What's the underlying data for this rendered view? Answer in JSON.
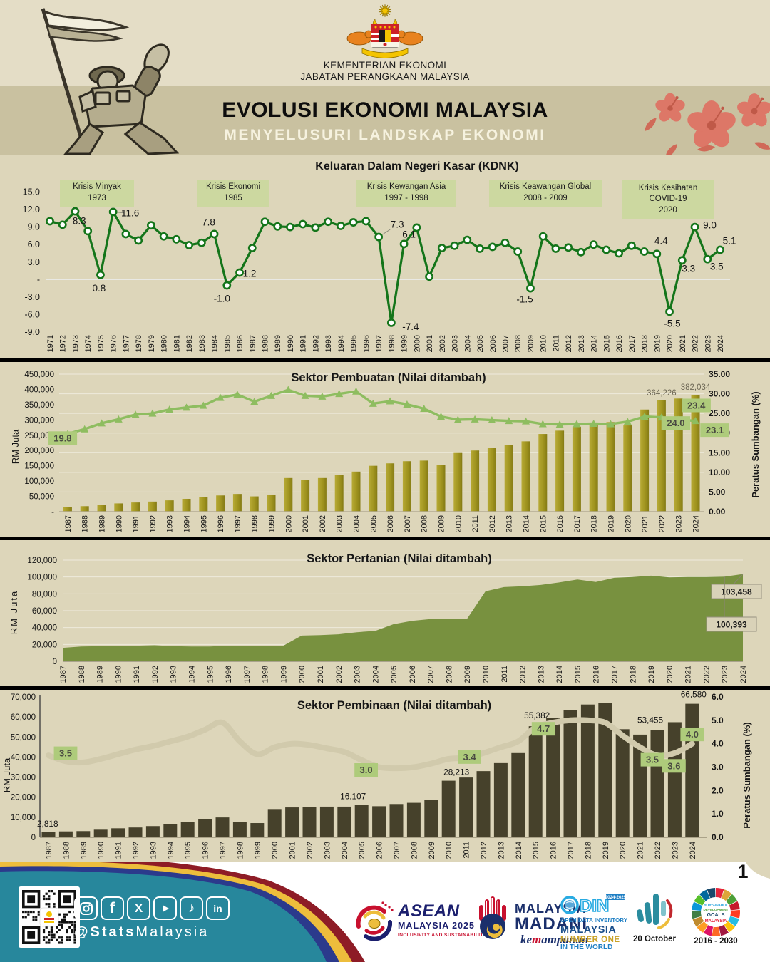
{
  "page": {
    "number": "1"
  },
  "header": {
    "ministry1": "KEMENTERIAN EKONOMI",
    "ministry2": "JABATAN PERANGKAAN MALAYSIA",
    "title": "EVOLUSI EKONOMI MALAYSIA",
    "subtitle": "MENYELUSURI  LANDSKAP  EKONOMI"
  },
  "colors": {
    "page_beige": "#ddd6ba",
    "band_beige": "#c9c1a0",
    "header_beige": "#e4ddc6",
    "kdnk_green": "#14751a",
    "crisis_box": "#ccd8a0",
    "manuf_bar": "#a79a22",
    "manuf_line": "#8ebd60",
    "value_box_green": "#aecb7b",
    "agri_area": "#78913f",
    "callout_beige": "#d9d2b8",
    "constr_bar": "#46412b",
    "constr_line": "#d1caac",
    "footer_teal": "#27879c",
    "stripe_maroon": "#8e1c26",
    "stripe_yellow": "#edbd3c",
    "stripe_blue": "#2b3a8c"
  },
  "chart_data": [
    {
      "type": "line",
      "title": "Keluaran Dalam Negeri Kasar (KDNK)",
      "x": [
        "1971",
        "1972",
        "1973",
        "1974",
        "1975",
        "1976",
        "1977",
        "1978",
        "1979",
        "1980",
        "1981",
        "1982",
        "1983",
        "1984",
        "1985",
        "1986",
        "1987",
        "1988",
        "1989",
        "1990",
        "1991",
        "1992",
        "1993",
        "1994",
        "1995",
        "1996",
        "1997",
        "1998",
        "1999",
        "2000",
        "2001",
        "2002",
        "2003",
        "2004",
        "2005",
        "2006",
        "2007",
        "2008",
        "2009",
        "2010",
        "2011",
        "2012",
        "2013",
        "2014",
        "2015",
        "2016",
        "2017",
        "2018",
        "2019",
        "2020",
        "2021",
        "2022",
        "2023",
        "2024"
      ],
      "values": [
        10.0,
        9.4,
        11.7,
        8.3,
        0.8,
        11.6,
        7.8,
        6.7,
        9.3,
        7.4,
        6.9,
        5.9,
        6.3,
        7.8,
        -1.0,
        1.2,
        5.4,
        9.9,
        9.1,
        9.0,
        9.5,
        8.9,
        9.9,
        9.2,
        9.8,
        10.0,
        7.3,
        -7.4,
        6.1,
        8.9,
        0.5,
        5.4,
        5.8,
        6.8,
        5.3,
        5.6,
        6.3,
        4.8,
        -1.5,
        7.4,
        5.3,
        5.5,
        4.7,
        6.0,
        5.1,
        4.5,
        5.8,
        4.8,
        4.4,
        -5.5,
        3.3,
        9.0,
        3.5,
        5.1
      ],
      "ylim": [
        -9,
        15
      ],
      "yticks": [
        {
          "v": 15,
          "label": "15.0"
        },
        {
          "v": 12,
          "label": "12.0"
        },
        {
          "v": 9,
          "label": "9.0"
        },
        {
          "v": 6,
          "label": "6.0"
        },
        {
          "v": 3,
          "label": "3.0"
        },
        {
          "v": 0,
          "label": "-"
        },
        {
          "v": -3,
          "label": "-3.0"
        },
        {
          "v": -6,
          "label": "-6.0"
        },
        {
          "v": -9,
          "label": "-9.0"
        }
      ],
      "point_labels": [
        {
          "x": "1974",
          "label": "8.3"
        },
        {
          "x": "1975",
          "label": "0.8"
        },
        {
          "x": "1976",
          "label": "11.6"
        },
        {
          "x": "1984",
          "label": "7.8"
        },
        {
          "x": "1985",
          "label": "-1.0"
        },
        {
          "x": "1986",
          "label": "1.2"
        },
        {
          "x": "1997",
          "label": "7.3"
        },
        {
          "x": "1998",
          "label": "-7.4"
        },
        {
          "x": "1999",
          "label": "6.1"
        },
        {
          "x": "2009",
          "label": "-1.5"
        },
        {
          "x": "2019",
          "label": "4.4"
        },
        {
          "x": "2020",
          "label": "-5.5"
        },
        {
          "x": "2021",
          "label": "3.3"
        },
        {
          "x": "2022",
          "label": "9.0"
        },
        {
          "x": "2023",
          "label": "3.5"
        },
        {
          "x": "2024",
          "label": "5.1"
        }
      ],
      "annotations": [
        {
          "lines": [
            "Krisis Minyak",
            "1973"
          ]
        },
        {
          "lines": [
            "Krisis Ekonomi",
            "1985"
          ]
        },
        {
          "lines": [
            "Krisis Kewangan Asia",
            "1997 - 1998"
          ]
        },
        {
          "lines": [
            "Krisis Keawangan Global",
            "2008 - 2009"
          ]
        },
        {
          "lines": [
            "Krisis Kesihatan",
            "COVID-19",
            "2020"
          ]
        }
      ]
    },
    {
      "type": "bar-line",
      "title": "Sektor Pembuatan (Nilai ditambah)",
      "ylabel_left": "RM Juta",
      "ylabel_right": "Peratus Sumbangan (%)",
      "x": [
        "1987",
        "1988",
        "1989",
        "1990",
        "1991",
        "1992",
        "1993",
        "1994",
        "1995",
        "1996",
        "1997",
        "1998",
        "1999",
        "2000",
        "2001",
        "2002",
        "2003",
        "2004",
        "2005",
        "2006",
        "2007",
        "2008",
        "2009",
        "2010",
        "2011",
        "2012",
        "2013",
        "2014",
        "2015",
        "2016",
        "2017",
        "2018",
        "2019",
        "2020",
        "2021",
        "2022",
        "2023",
        "2024"
      ],
      "bars": [
        15000,
        18000,
        22000,
        27000,
        30000,
        33000,
        37000,
        42000,
        47000,
        53000,
        58000,
        50000,
        56000,
        110000,
        104000,
        110000,
        119000,
        131000,
        150000,
        158000,
        165000,
        167000,
        152000,
        192000,
        200000,
        209000,
        217000,
        230000,
        254000,
        265000,
        278000,
        287000,
        293000,
        282000,
        334000,
        364226,
        370000,
        382034
      ],
      "line": [
        19.8,
        21.0,
        22.5,
        23.5,
        24.7,
        25.0,
        26.0,
        26.5,
        27.0,
        29.0,
        29.8,
        28.0,
        29.5,
        31.0,
        29.5,
        29.3,
        30.0,
        30.6,
        27.5,
        28.1,
        27.3,
        26.2,
        24.2,
        23.4,
        23.5,
        23.3,
        23.1,
        23.0,
        22.3,
        22.2,
        22.3,
        22.4,
        22.3,
        22.9,
        24.2,
        24.0,
        23.4,
        23.1
      ],
      "ylim_left": [
        0,
        450000
      ],
      "ylim_right": [
        0,
        35
      ],
      "yticks_left": [
        {
          "v": 450000,
          "label": "450,000"
        },
        {
          "v": 400000,
          "label": "400,000"
        },
        {
          "v": 350000,
          "label": "350,000"
        },
        {
          "v": 300000,
          "label": "300,000"
        },
        {
          "v": 250000,
          "label": "250,000"
        },
        {
          "v": 200000,
          "label": "200,000"
        },
        {
          "v": 150000,
          "label": "150,000"
        },
        {
          "v": 100000,
          "label": "100,000"
        },
        {
          "v": 50000,
          "label": "50,000"
        },
        {
          "v": 0,
          "label": "-"
        }
      ],
      "yticks_right": [
        {
          "v": 35,
          "label": "35.00"
        },
        {
          "v": 30,
          "label": "30.00"
        },
        {
          "v": 25,
          "label": "25.00"
        },
        {
          "v": 20,
          "label": "20.00"
        },
        {
          "v": 15,
          "label": "15.00"
        },
        {
          "v": 10,
          "label": "10.00"
        },
        {
          "v": 5,
          "label": "5.00"
        },
        {
          "v": 0,
          "label": "0.00"
        }
      ],
      "bar_labels": [
        {
          "x": "2022",
          "label": "364,226"
        },
        {
          "x": "2024",
          "label": "382,034"
        }
      ],
      "line_labels": [
        {
          "x": "1987",
          "label": "19.8"
        },
        {
          "x": "2022",
          "label": "24.0"
        },
        {
          "x": "2023",
          "label": "23.4"
        },
        {
          "x": "2024",
          "label": "23.1"
        }
      ]
    },
    {
      "type": "area",
      "title": "Sektor Pertanian (Nilai ditambah)",
      "ylabel": "RM Juta",
      "x": [
        "1987",
        "1988",
        "1989",
        "1990",
        "1991",
        "1992",
        "1993",
        "1994",
        "1995",
        "1996",
        "1997",
        "1998",
        "1999",
        "2000",
        "2001",
        "2002",
        "2003",
        "2004",
        "2005",
        "2006",
        "2007",
        "2008",
        "2009",
        "2010",
        "2011",
        "2012",
        "2013",
        "2014",
        "2015",
        "2016",
        "2017",
        "2018",
        "2019",
        "2020",
        "2021",
        "2022",
        "2023",
        "2024"
      ],
      "values": [
        16000,
        17500,
        18000,
        18000,
        18500,
        19000,
        18000,
        17500,
        17500,
        18500,
        18500,
        18500,
        18500,
        30500,
        31000,
        32000,
        34500,
        36000,
        44000,
        48000,
        50000,
        50500,
        50500,
        83000,
        88000,
        89000,
        90500,
        93500,
        97000,
        94000,
        99000,
        100000,
        101500,
        99500,
        100000,
        100000,
        100393,
        103458
      ],
      "ylim": [
        0,
        120000
      ],
      "yticks": [
        {
          "v": 120000,
          "label": "120,000"
        },
        {
          "v": 100000,
          "label": "100,000"
        },
        {
          "v": 80000,
          "label": "80,000"
        },
        {
          "v": 60000,
          "label": "60,000"
        },
        {
          "v": 40000,
          "label": "40,000"
        },
        {
          "v": 20000,
          "label": "20,000"
        },
        {
          "v": 0,
          "label": "0"
        }
      ],
      "callouts": [
        {
          "x": "2024",
          "label": "103,458"
        },
        {
          "x": "2023",
          "label": "100,393"
        }
      ]
    },
    {
      "type": "bar-line",
      "title": "Sektor Pembinaan (Nilai ditambah)",
      "ylabel_left": "RM Juta",
      "ylabel_right": "Peratus Sumbangan (%)",
      "x": [
        "1987",
        "1988",
        "1989",
        "1990",
        "1991",
        "1992",
        "1993",
        "1994",
        "1995",
        "1996",
        "1997",
        "1998",
        "1999",
        "2000",
        "2001",
        "2002",
        "2003",
        "2004",
        "2005",
        "2006",
        "2007",
        "2008",
        "2009",
        "2010",
        "2011",
        "2012",
        "2013",
        "2014",
        "2015",
        "2016",
        "2017",
        "2018",
        "2019",
        "2020",
        "2021",
        "2022",
        "2023",
        "2024"
      ],
      "bars": [
        2818,
        2950,
        3100,
        3800,
        4500,
        4900,
        5600,
        6400,
        7800,
        8900,
        9900,
        7600,
        7100,
        14100,
        14900,
        15100,
        15300,
        15300,
        16107,
        15500,
        16600,
        17200,
        18600,
        28213,
        29800,
        33000,
        37000,
        42000,
        55382,
        59500,
        63500,
        66200,
        66900,
        53900,
        51200,
        53455,
        57400,
        66580
      ],
      "line": [
        3.5,
        3.25,
        3.2,
        3.35,
        3.55,
        3.75,
        3.9,
        4.1,
        4.3,
        4.6,
        4.9,
        4.1,
        3.55,
        3.85,
        4.0,
        3.95,
        3.8,
        3.65,
        3.3,
        3.0,
        2.95,
        3.0,
        3.15,
        3.35,
        3.4,
        3.6,
        3.85,
        4.1,
        4.7,
        4.9,
        5.0,
        5.0,
        4.9,
        4.35,
        3.85,
        3.5,
        3.6,
        4.0
      ],
      "ylim_left": [
        0,
        70000
      ],
      "ylim_right": [
        0,
        6
      ],
      "yticks_left": [
        {
          "v": 70000,
          "label": "70,000"
        },
        {
          "v": 60000,
          "label": "60,000"
        },
        {
          "v": 50000,
          "label": "50,000"
        },
        {
          "v": 40000,
          "label": "40,000"
        },
        {
          "v": 30000,
          "label": "30,000"
        },
        {
          "v": 20000,
          "label": "20,000"
        },
        {
          "v": 10000,
          "label": "10,000"
        },
        {
          "v": 0,
          "label": "0"
        }
      ],
      "yticks_right": [
        {
          "v": 6,
          "label": "6.0"
        },
        {
          "v": 5,
          "label": "5.0"
        },
        {
          "v": 4,
          "label": "4.0"
        },
        {
          "v": 3,
          "label": "3.0"
        },
        {
          "v": 2,
          "label": "2.0"
        },
        {
          "v": 1,
          "label": "1.0"
        },
        {
          "v": 0,
          "label": "0.0"
        }
      ],
      "bar_labels": [
        {
          "x": "1987",
          "label": "2,818"
        },
        {
          "x": "2005",
          "label": "16,107"
        },
        {
          "x": "2010",
          "label": "28,213"
        },
        {
          "x": "2015",
          "label": "55,382"
        },
        {
          "x": "2022",
          "label": "53,455"
        },
        {
          "x": "2024",
          "label": "66,580"
        }
      ],
      "line_labels": [
        {
          "x": "1987",
          "label": "3.5"
        },
        {
          "x": "2006",
          "label": "3.0"
        },
        {
          "x": "2011",
          "label": "3.4"
        },
        {
          "x": "2015",
          "label": "4.7"
        },
        {
          "x": "2022",
          "label": "3.5"
        },
        {
          "x": "2023",
          "label": "3.6"
        },
        {
          "x": "2024",
          "label": "4.0"
        }
      ]
    }
  ],
  "footer": {
    "handle_bold": "@Stats",
    "handle_rest": "Malaysia",
    "social_icons": [
      "instagram",
      "facebook",
      "x",
      "youtube",
      "tiktok",
      "linkedin"
    ],
    "logos": {
      "asean": {
        "line1": "ASEAN",
        "line2": "MALAYSIA 2025",
        "line3": "INCLUSIVITY AND SUSTAINABILITY"
      },
      "madani": {
        "line1": "MALAYSIA",
        "line2": "MADANI",
        "script_a": "ke",
        "script_b": "m",
        "script_c": "ampanan"
      },
      "odin": {
        "name": "ODIN",
        "badge": "2024-2025",
        "line1": "OPEN DATA INVENTORY",
        "line2": "MALAYSIA",
        "line3": "NUMBER ONE",
        "line4": "IN THE WORLD"
      },
      "stats_day": {
        "label": "20 October"
      },
      "sdg": {
        "line1": "SUSTAINABLE",
        "line2": "DEVELOPMENT",
        "line3": "GOALS",
        "line4": "MALAYSIA",
        "label": "2016 - 2030"
      }
    }
  }
}
